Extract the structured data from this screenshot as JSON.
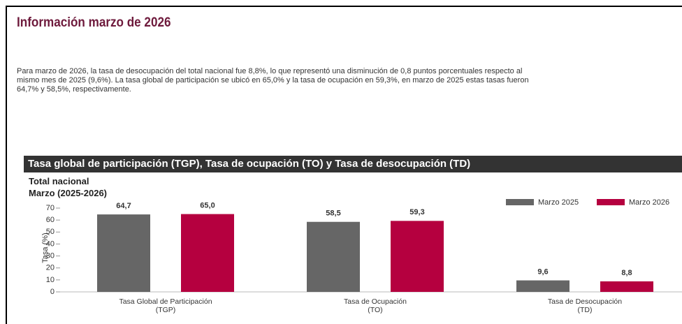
{
  "header": {
    "title": "Información marzo de 2026"
  },
  "paragraph": [
    "Para marzo de 2026, la tasa de desocupación del total nacional fue 8,8%, lo que representó una disminución de 0,8 puntos porcentuales respecto al",
    "mismo mes de 2025 (9,6%). La tasa global de participación se ubicó en 65,0% y la tasa de ocupación en 59,3%, en marzo de 2025 estas tasas fueron",
    "64,7% y 58,5%, respectivamente."
  ],
  "chart_data": {
    "type": "bar",
    "title": "Tasa global de participación (TGP), Tasa de ocupación (TO) y Tasa de desocupación (TD)",
    "subtitle": [
      "Total nacional",
      "Marzo (2025-2026)"
    ],
    "y_label": "Tasa (%)",
    "categories": [
      "Tasa Global de Participación\n(TGP)",
      "Tasa de Ocupación\n(TO)",
      "Tasa de Desocupación\n(TD)"
    ],
    "series": [
      {
        "name": "Marzo  2025",
        "color": "#666666",
        "values": [
          64.7,
          58.5,
          9.6
        ],
        "value_labels": [
          "64,7",
          "58,5",
          "9,6"
        ]
      },
      {
        "name": "Marzo  2026",
        "color": "#b5003f",
        "values": [
          65.0,
          59.3,
          8.8
        ],
        "value_labels": [
          "65,0",
          "59,3",
          "8,8"
        ]
      }
    ],
    "ylim": [
      0,
      70
    ],
    "yticks": [
      0,
      10,
      20,
      30,
      40,
      50,
      60,
      70
    ],
    "legend": "top-right"
  }
}
